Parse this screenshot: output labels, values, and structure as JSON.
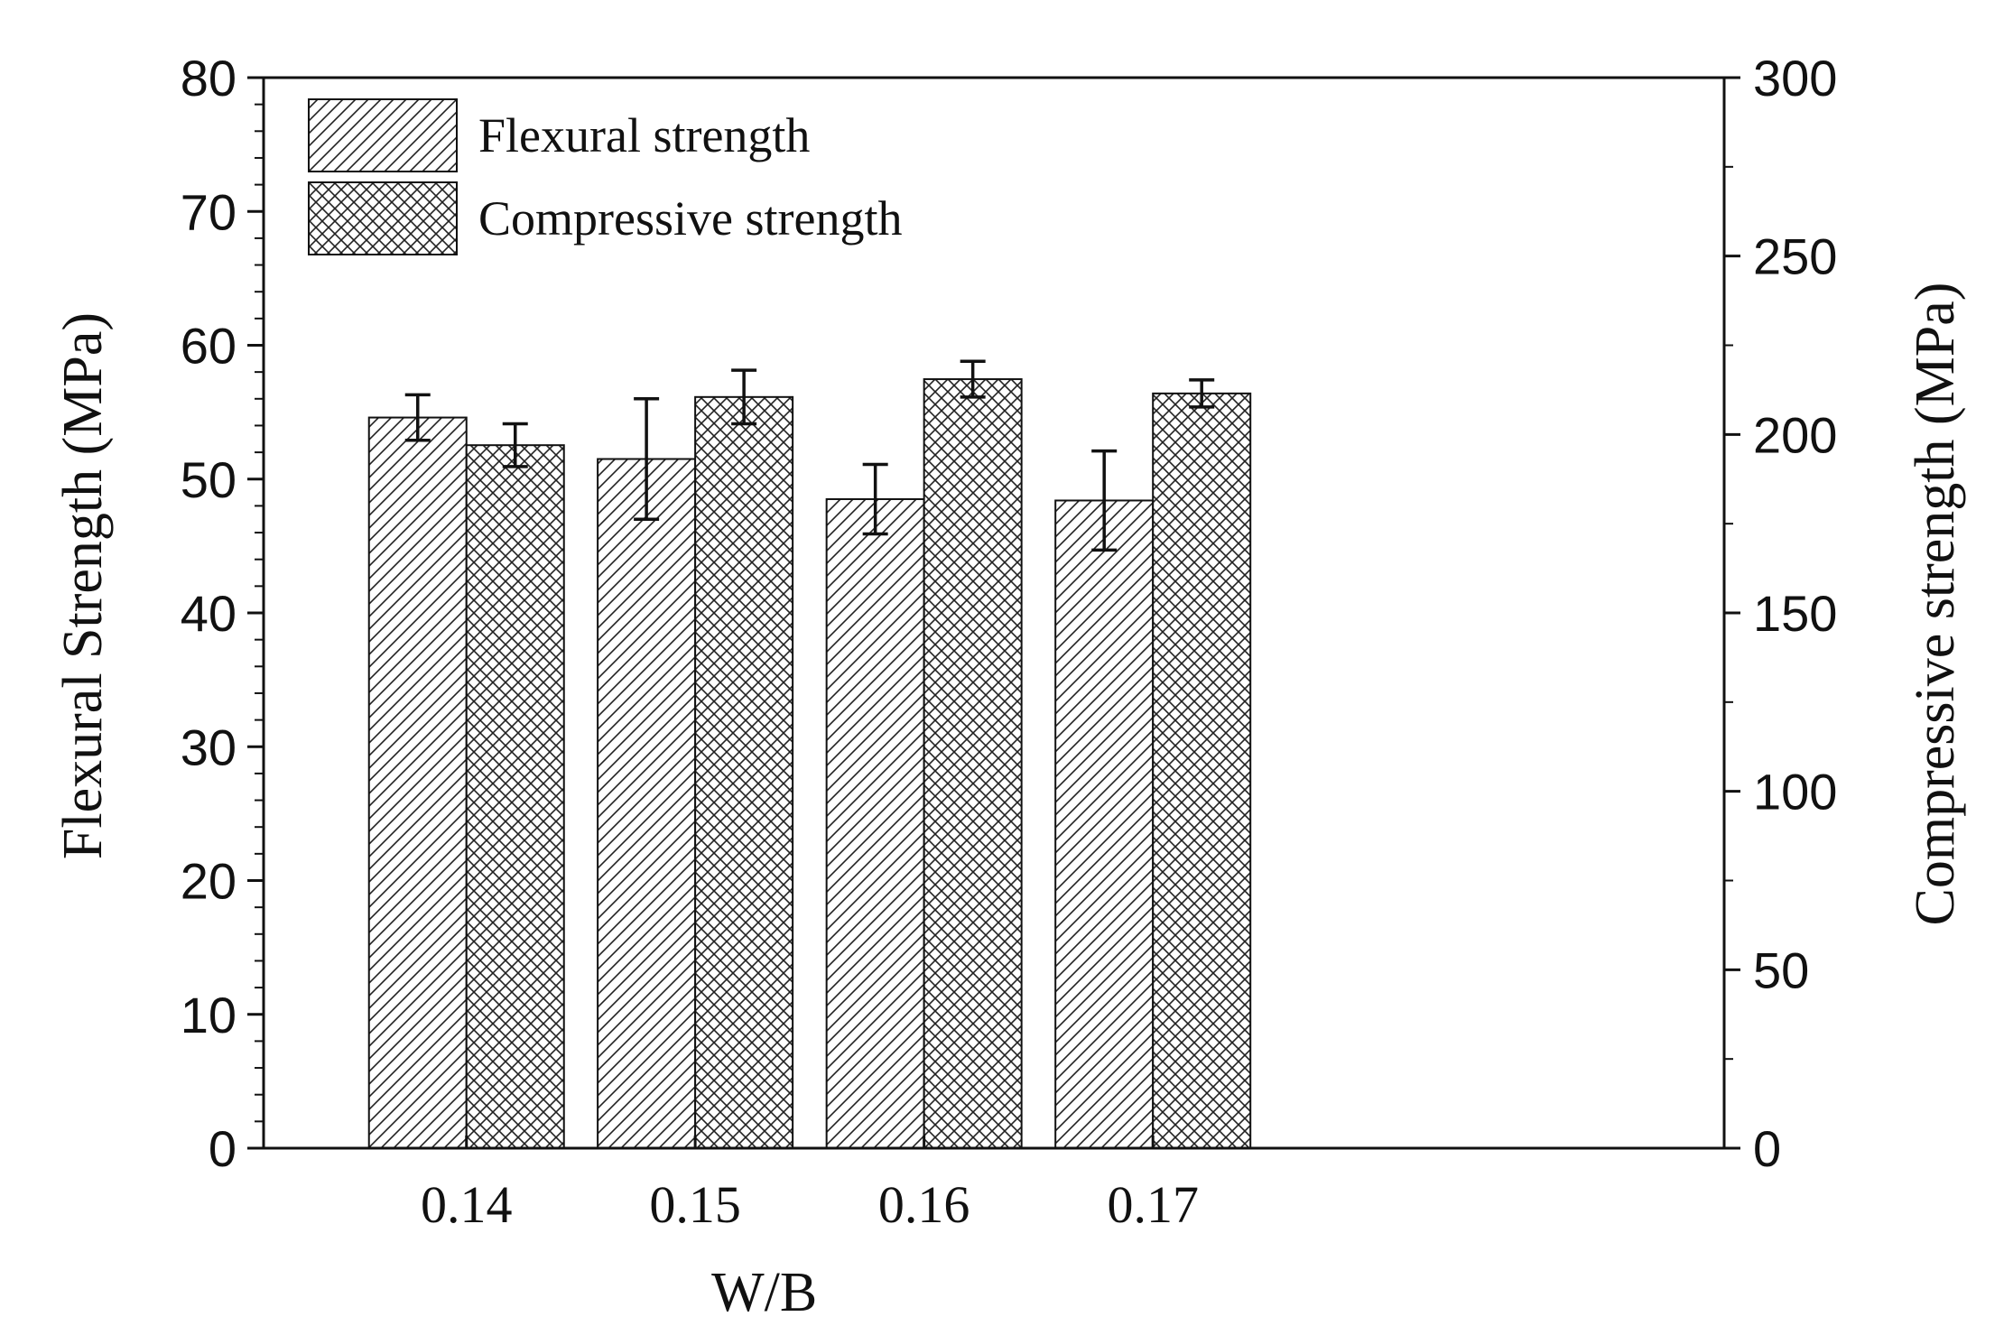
{
  "chart_data": {
    "type": "bar",
    "xlabel": "W/B",
    "ylabel_left": "Flexural Strength (MPa)",
    "ylabel_right": "Compressive strength (MPa)",
    "categories": [
      "0.14",
      "0.15",
      "0.16",
      "0.17"
    ],
    "ylim_left": [
      0,
      80
    ],
    "ylim_right": [
      0,
      300
    ],
    "yticks_left": [
      "0",
      "10",
      "20",
      "30",
      "40",
      "50",
      "60",
      "70",
      "80"
    ],
    "yticks_right": [
      "0",
      "50",
      "100",
      "150",
      "200",
      "250",
      "300"
    ],
    "grid": false,
    "legend_position": "top-left",
    "series": [
      {
        "name": "Flexural strength",
        "axis": "left",
        "pattern": "diagonal-hatch",
        "values": [
          54.6,
          51.5,
          48.5,
          48.4
        ],
        "errors": [
          1.7,
          4.5,
          2.6,
          3.7
        ]
      },
      {
        "name": "Compressive strength",
        "axis": "right",
        "pattern": "cross-hatch",
        "values": [
          197,
          210.5,
          215.5,
          211.5
        ],
        "errors": [
          6.0,
          7.5,
          5.0,
          3.8
        ]
      }
    ]
  }
}
